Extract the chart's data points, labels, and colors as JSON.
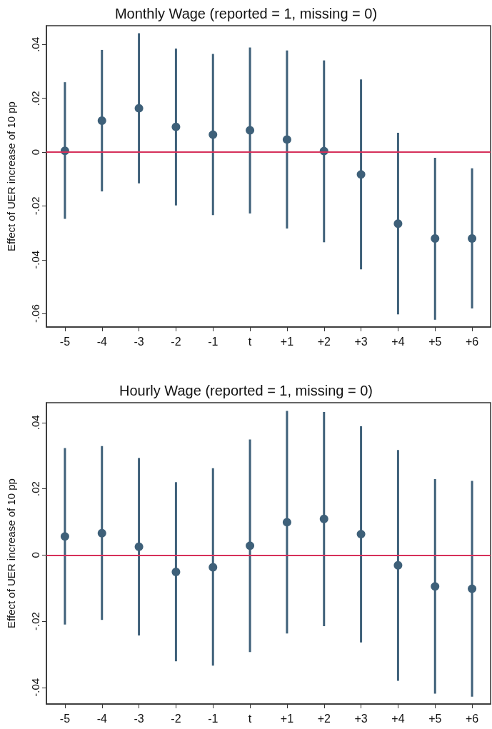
{
  "chart_data": [
    {
      "type": "scatter",
      "title": "Monthly Wage (reported = 1, missing = 0)",
      "ylabel": "Effect of UER increase of 10 pp",
      "categories": [
        "-5",
        "-4",
        "-3",
        "-2",
        "-1",
        "t",
        "+1",
        "+2",
        "+3",
        "+4",
        "+5",
        "+6"
      ],
      "series": [
        {
          "color": "#3e6079",
          "values": [
            0.0005,
            0.0117,
            0.0163,
            0.0094,
            0.0065,
            0.0081,
            0.0047,
            0.0004,
            -0.0083,
            -0.0266,
            -0.0321,
            -0.0321
          ],
          "errors": [
            [
              -0.0248,
              0.026
            ],
            [
              -0.0146,
              0.038
            ],
            [
              -0.0116,
              0.0442
            ],
            [
              -0.0198,
              0.0385
            ],
            [
              -0.0234,
              0.0365
            ],
            [
              -0.0228,
              0.0389
            ],
            [
              -0.0284,
              0.0378
            ],
            [
              -0.0335,
              0.0341
            ],
            [
              -0.0436,
              0.027
            ],
            [
              -0.0603,
              0.0072
            ],
            [
              -0.0623,
              -0.0021
            ],
            [
              -0.0581,
              -0.006
            ]
          ]
        }
      ],
      "ylim": [
        -0.065,
        0.047
      ],
      "yticks": [
        {
          "value": -0.06,
          "label": "-.06"
        },
        {
          "value": -0.04,
          "label": "-.04"
        },
        {
          "value": -0.02,
          "label": "-.02"
        },
        {
          "value": 0,
          "label": "0"
        },
        {
          "value": 0.02,
          "label": ".02"
        },
        {
          "value": 0.04,
          "label": ".04"
        }
      ],
      "ref_lines": [
        {
          "axis": "y",
          "value": 0,
          "color": "#d6305a"
        }
      ],
      "marker": "circle",
      "grid": false
    },
    {
      "type": "scatter",
      "title": "Hourly Wage (reported = 1, missing = 0)",
      "ylabel": "Effect of UER increase of 10 pp",
      "categories": [
        "-5",
        "-4",
        "-3",
        "-2",
        "-1",
        "t",
        "+1",
        "+2",
        "+3",
        "+4",
        "+5",
        "+6"
      ],
      "series": [
        {
          "color": "#3e6079",
          "values": [
            0.0056,
            0.0066,
            0.0025,
            -0.0051,
            -0.0037,
            0.0028,
            0.0099,
            0.0109,
            0.0063,
            -0.0031,
            -0.0095,
            -0.0102
          ],
          "errors": [
            [
              -0.021,
              0.0323
            ],
            [
              -0.0196,
              0.0329
            ],
            [
              -0.0243,
              0.0293
            ],
            [
              -0.0321,
              0.022
            ],
            [
              -0.0334,
              0.0262
            ],
            [
              -0.0293,
              0.0349
            ],
            [
              -0.0237,
              0.0435
            ],
            [
              -0.0215,
              0.0432
            ],
            [
              -0.0264,
              0.0389
            ],
            [
              -0.038,
              0.0317
            ],
            [
              -0.0419,
              0.0229
            ],
            [
              -0.0428,
              0.0224
            ]
          ]
        }
      ],
      "ylim": [
        -0.045,
        0.046
      ],
      "yticks": [
        {
          "value": -0.04,
          "label": "-.04"
        },
        {
          "value": -0.02,
          "label": "-.02"
        },
        {
          "value": 0,
          "label": "0"
        },
        {
          "value": 0.02,
          "label": ".02"
        },
        {
          "value": 0.04,
          "label": ".04"
        }
      ],
      "ref_lines": [
        {
          "axis": "y",
          "value": 0,
          "color": "#d6305a"
        }
      ],
      "marker": "circle",
      "grid": false
    }
  ]
}
